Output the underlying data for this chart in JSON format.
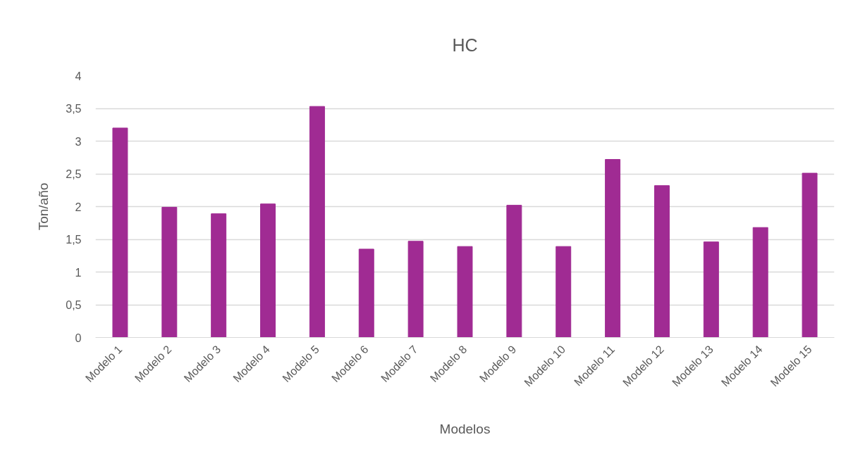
{
  "chart_data": {
    "type": "bar",
    "title": "HC",
    "xlabel": "Modelos",
    "ylabel": "Ton/año",
    "categories": [
      "Modelo 1",
      "Modelo 2",
      "Modelo 3",
      "Modelo 4",
      "Modelo 5",
      "Modelo 6",
      "Modelo 7",
      "Modelo 8",
      "Modelo 9",
      "Modelo 10",
      "Modelo 11",
      "Modelo 12",
      "Modelo 13",
      "Modelo 14",
      "Modelo 15"
    ],
    "values": [
      3.2,
      1.99,
      1.89,
      2.04,
      3.53,
      1.35,
      1.47,
      1.39,
      2.02,
      1.39,
      2.72,
      2.32,
      1.46,
      1.68,
      2.51
    ],
    "color": "#a02b93",
    "ylim": [
      0,
      4
    ],
    "yticks": [
      0,
      {
        "value": 0.5,
        "label": "0,5"
      },
      1,
      {
        "value": 1.5,
        "label": "1,5"
      },
      2,
      {
        "value": 2.5,
        "label": "2,5"
      },
      3,
      {
        "value": 3.5,
        "label": "3,5"
      },
      4
    ],
    "grid": "y"
  }
}
